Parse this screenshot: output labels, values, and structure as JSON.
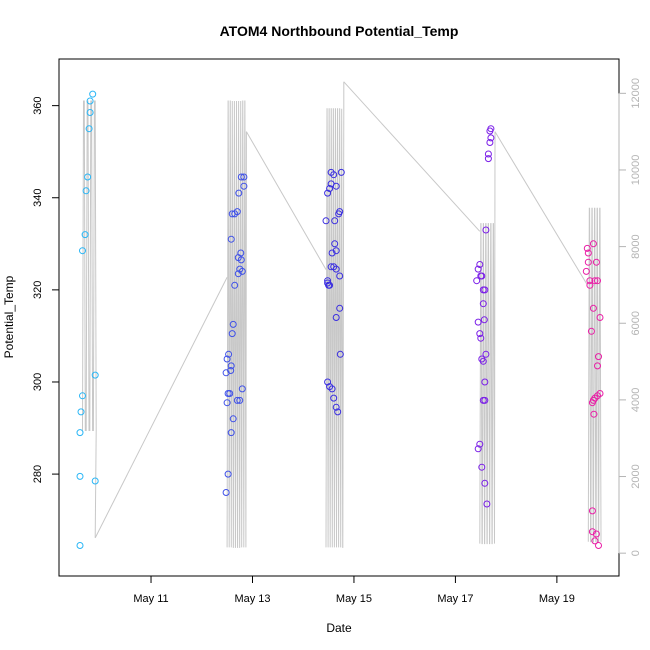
{
  "chart_data": {
    "type": "scatter",
    "title": "ATOM4 Northbound Potential_Temp",
    "xlabel": "Date",
    "ylabel": "Potential_Temp",
    "xlim": [
      9.6,
      19.85
    ],
    "ylim": [
      262,
      366
    ],
    "y2lim": [
      -100,
      12400
    ],
    "x_ticks": [
      {
        "value": 11,
        "label": "May 11"
      },
      {
        "value": 13,
        "label": "May 13"
      },
      {
        "value": 15,
        "label": "May 15"
      },
      {
        "value": 17,
        "label": "May 17"
      },
      {
        "value": 19,
        "label": "May 19"
      }
    ],
    "y_ticks": [
      280,
      300,
      320,
      340,
      360
    ],
    "y2_ticks": [
      0,
      2000,
      4000,
      6000,
      8000,
      10000,
      12000
    ],
    "grid": false,
    "points": [
      {
        "x": 9.6,
        "y": 264.5,
        "c": "#29b6f6"
      },
      {
        "x": 9.6,
        "y": 279.5,
        "c": "#29b6f6"
      },
      {
        "x": 9.6,
        "y": 289.0,
        "c": "#29b6f6"
      },
      {
        "x": 9.62,
        "y": 293.5,
        "c": "#29b6f6"
      },
      {
        "x": 9.65,
        "y": 297.0,
        "c": "#29b6f6"
      },
      {
        "x": 9.65,
        "y": 328.5,
        "c": "#29b6f6"
      },
      {
        "x": 9.7,
        "y": 332.0,
        "c": "#29b6f6"
      },
      {
        "x": 9.72,
        "y": 341.5,
        "c": "#29b6f6"
      },
      {
        "x": 9.75,
        "y": 344.5,
        "c": "#29b6f6"
      },
      {
        "x": 9.78,
        "y": 355.0,
        "c": "#29b6f6"
      },
      {
        "x": 9.8,
        "y": 358.5,
        "c": "#29b6f6"
      },
      {
        "x": 9.8,
        "y": 361.0,
        "c": "#29b6f6"
      },
      {
        "x": 9.85,
        "y": 362.5,
        "c": "#29b6f6"
      },
      {
        "x": 9.9,
        "y": 278.5,
        "c": "#29b6f6"
      },
      {
        "x": 9.9,
        "y": 301.5,
        "c": "#29b6f6"
      },
      {
        "x": 12.48,
        "y": 276.0,
        "c": "#3f51e8"
      },
      {
        "x": 12.52,
        "y": 280.0,
        "c": "#3f51e8"
      },
      {
        "x": 12.5,
        "y": 295.5,
        "c": "#3f51e8"
      },
      {
        "x": 12.52,
        "y": 297.5,
        "c": "#3f51e8"
      },
      {
        "x": 12.55,
        "y": 297.5,
        "c": "#3f51e8"
      },
      {
        "x": 12.48,
        "y": 302.0,
        "c": "#3f51e8"
      },
      {
        "x": 12.57,
        "y": 302.5,
        "c": "#3f51e8"
      },
      {
        "x": 12.58,
        "y": 303.5,
        "c": "#3f51e8"
      },
      {
        "x": 12.5,
        "y": 305.0,
        "c": "#3f51e8"
      },
      {
        "x": 12.53,
        "y": 306.0,
        "c": "#3f51e8"
      },
      {
        "x": 12.58,
        "y": 289.0,
        "c": "#3f51e8"
      },
      {
        "x": 12.62,
        "y": 292.0,
        "c": "#3f51e8"
      },
      {
        "x": 12.6,
        "y": 310.5,
        "c": "#3f51e8"
      },
      {
        "x": 12.62,
        "y": 312.5,
        "c": "#3f51e8"
      },
      {
        "x": 12.65,
        "y": 321.0,
        "c": "#3f51e8"
      },
      {
        "x": 12.58,
        "y": 331.0,
        "c": "#3f51e8"
      },
      {
        "x": 12.6,
        "y": 336.5,
        "c": "#3f51e8"
      },
      {
        "x": 12.65,
        "y": 336.5,
        "c": "#3f51e8"
      },
      {
        "x": 12.7,
        "y": 337.0,
        "c": "#3f51e8"
      },
      {
        "x": 12.7,
        "y": 296.0,
        "c": "#3f51e8"
      },
      {
        "x": 12.75,
        "y": 296.0,
        "c": "#3f51e8"
      },
      {
        "x": 12.72,
        "y": 323.5,
        "c": "#3f51e8"
      },
      {
        "x": 12.75,
        "y": 324.5,
        "c": "#3f51e8"
      },
      {
        "x": 12.78,
        "y": 326.5,
        "c": "#3f51e8"
      },
      {
        "x": 12.72,
        "y": 327.0,
        "c": "#3f51e8"
      },
      {
        "x": 12.77,
        "y": 328.0,
        "c": "#3f51e8"
      },
      {
        "x": 12.8,
        "y": 324.0,
        "c": "#3f51e8"
      },
      {
        "x": 12.73,
        "y": 341.0,
        "c": "#3f51e8"
      },
      {
        "x": 12.78,
        "y": 344.5,
        "c": "#3f51e8"
      },
      {
        "x": 12.83,
        "y": 344.5,
        "c": "#3f51e8"
      },
      {
        "x": 12.83,
        "y": 342.5,
        "c": "#3f51e8"
      },
      {
        "x": 12.8,
        "y": 298.5,
        "c": "#3f51e8"
      },
      {
        "x": 14.45,
        "y": 335.0,
        "c": "#3a2ee0"
      },
      {
        "x": 14.48,
        "y": 341.0,
        "c": "#3a2ee0"
      },
      {
        "x": 14.52,
        "y": 342.0,
        "c": "#3a2ee0"
      },
      {
        "x": 14.55,
        "y": 343.0,
        "c": "#3a2ee0"
      },
      {
        "x": 14.55,
        "y": 345.5,
        "c": "#3a2ee0"
      },
      {
        "x": 14.6,
        "y": 345.0,
        "c": "#3a2ee0"
      },
      {
        "x": 14.48,
        "y": 321.5,
        "c": "#3a2ee0"
      },
      {
        "x": 14.5,
        "y": 321.0,
        "c": "#3a2ee0"
      },
      {
        "x": 14.52,
        "y": 321.0,
        "c": "#3a2ee0"
      },
      {
        "x": 14.48,
        "y": 322.0,
        "c": "#3a2ee0"
      },
      {
        "x": 14.55,
        "y": 325.0,
        "c": "#3a2ee0"
      },
      {
        "x": 14.57,
        "y": 328.0,
        "c": "#3a2ee0"
      },
      {
        "x": 14.6,
        "y": 325.0,
        "c": "#3a2ee0"
      },
      {
        "x": 14.62,
        "y": 330.0,
        "c": "#3a2ee0"
      },
      {
        "x": 14.65,
        "y": 328.5,
        "c": "#3a2ee0"
      },
      {
        "x": 14.65,
        "y": 324.5,
        "c": "#3a2ee0"
      },
      {
        "x": 14.62,
        "y": 335.0,
        "c": "#3a2ee0"
      },
      {
        "x": 14.65,
        "y": 342.5,
        "c": "#3a2ee0"
      },
      {
        "x": 14.7,
        "y": 336.5,
        "c": "#3a2ee0"
      },
      {
        "x": 14.72,
        "y": 337.0,
        "c": "#3a2ee0"
      },
      {
        "x": 14.75,
        "y": 345.5,
        "c": "#3a2ee0"
      },
      {
        "x": 14.72,
        "y": 323.0,
        "c": "#3a2ee0"
      },
      {
        "x": 14.65,
        "y": 314.0,
        "c": "#3a2ee0"
      },
      {
        "x": 14.72,
        "y": 316.0,
        "c": "#3a2ee0"
      },
      {
        "x": 14.48,
        "y": 300.0,
        "c": "#3a2ee0"
      },
      {
        "x": 14.52,
        "y": 299.0,
        "c": "#3a2ee0"
      },
      {
        "x": 14.57,
        "y": 298.5,
        "c": "#3a2ee0"
      },
      {
        "x": 14.6,
        "y": 296.5,
        "c": "#3a2ee0"
      },
      {
        "x": 14.65,
        "y": 294.5,
        "c": "#3a2ee0"
      },
      {
        "x": 14.68,
        "y": 293.5,
        "c": "#3a2ee0"
      },
      {
        "x": 14.73,
        "y": 306.0,
        "c": "#3a2ee0"
      },
      {
        "x": 17.42,
        "y": 322.0,
        "c": "#7b1fe8"
      },
      {
        "x": 17.45,
        "y": 324.5,
        "c": "#7b1fe8"
      },
      {
        "x": 17.48,
        "y": 325.5,
        "c": "#7b1fe8"
      },
      {
        "x": 17.5,
        "y": 323.0,
        "c": "#7b1fe8"
      },
      {
        "x": 17.52,
        "y": 323.0,
        "c": "#7b1fe8"
      },
      {
        "x": 17.55,
        "y": 320.0,
        "c": "#7b1fe8"
      },
      {
        "x": 17.58,
        "y": 320.0,
        "c": "#7b1fe8"
      },
      {
        "x": 17.55,
        "y": 317.0,
        "c": "#7b1fe8"
      },
      {
        "x": 17.45,
        "y": 313.0,
        "c": "#7b1fe8"
      },
      {
        "x": 17.48,
        "y": 310.5,
        "c": "#7b1fe8"
      },
      {
        "x": 17.5,
        "y": 309.5,
        "c": "#7b1fe8"
      },
      {
        "x": 17.57,
        "y": 313.5,
        "c": "#7b1fe8"
      },
      {
        "x": 17.52,
        "y": 305.0,
        "c": "#7b1fe8"
      },
      {
        "x": 17.55,
        "y": 304.5,
        "c": "#7b1fe8"
      },
      {
        "x": 17.6,
        "y": 306.0,
        "c": "#7b1fe8"
      },
      {
        "x": 17.58,
        "y": 300.0,
        "c": "#7b1fe8"
      },
      {
        "x": 17.55,
        "y": 296.0,
        "c": "#7b1fe8"
      },
      {
        "x": 17.58,
        "y": 296.0,
        "c": "#7b1fe8"
      },
      {
        "x": 17.45,
        "y": 285.5,
        "c": "#7b1fe8"
      },
      {
        "x": 17.48,
        "y": 286.5,
        "c": "#7b1fe8"
      },
      {
        "x": 17.52,
        "y": 281.5,
        "c": "#7b1fe8"
      },
      {
        "x": 17.58,
        "y": 278.0,
        "c": "#7b1fe8"
      },
      {
        "x": 17.62,
        "y": 273.5,
        "c": "#7b1fe8"
      },
      {
        "x": 17.6,
        "y": 333.0,
        "c": "#7b1fe8"
      },
      {
        "x": 17.65,
        "y": 349.5,
        "c": "#7b1fe8"
      },
      {
        "x": 17.65,
        "y": 348.5,
        "c": "#7b1fe8"
      },
      {
        "x": 17.68,
        "y": 352.0,
        "c": "#7b1fe8"
      },
      {
        "x": 17.7,
        "y": 353.0,
        "c": "#7b1fe8"
      },
      {
        "x": 17.68,
        "y": 354.5,
        "c": "#7b1fe8"
      },
      {
        "x": 17.7,
        "y": 355.0,
        "c": "#7b1fe8"
      },
      {
        "x": 19.6,
        "y": 329.0,
        "c": "#e91ea6"
      },
      {
        "x": 19.62,
        "y": 328.0,
        "c": "#e91ea6"
      },
      {
        "x": 19.58,
        "y": 324.0,
        "c": "#e91ea6"
      },
      {
        "x": 19.65,
        "y": 322.0,
        "c": "#e91ea6"
      },
      {
        "x": 19.62,
        "y": 326.0,
        "c": "#e91ea6"
      },
      {
        "x": 19.65,
        "y": 321.0,
        "c": "#e91ea6"
      },
      {
        "x": 19.72,
        "y": 330.0,
        "c": "#e91ea6"
      },
      {
        "x": 19.78,
        "y": 326.0,
        "c": "#e91ea6"
      },
      {
        "x": 19.8,
        "y": 322.0,
        "c": "#e91ea6"
      },
      {
        "x": 19.75,
        "y": 322.0,
        "c": "#e91ea6"
      },
      {
        "x": 19.72,
        "y": 316.0,
        "c": "#e91ea6"
      },
      {
        "x": 19.68,
        "y": 311.0,
        "c": "#e91ea6"
      },
      {
        "x": 19.85,
        "y": 314.0,
        "c": "#e91ea6"
      },
      {
        "x": 19.82,
        "y": 305.5,
        "c": "#e91ea6"
      },
      {
        "x": 19.8,
        "y": 303.5,
        "c": "#e91ea6"
      },
      {
        "x": 19.85,
        "y": 297.5,
        "c": "#e91ea6"
      },
      {
        "x": 19.8,
        "y": 297.0,
        "c": "#e91ea6"
      },
      {
        "x": 19.75,
        "y": 296.5,
        "c": "#e91ea6"
      },
      {
        "x": 19.72,
        "y": 296.0,
        "c": "#e91ea6"
      },
      {
        "x": 19.7,
        "y": 295.5,
        "c": "#e91ea6"
      },
      {
        "x": 19.73,
        "y": 293.0,
        "c": "#e91ea6"
      },
      {
        "x": 19.7,
        "y": 272.0,
        "c": "#e91ea6"
      },
      {
        "x": 19.7,
        "y": 267.5,
        "c": "#e91ea6"
      },
      {
        "x": 19.78,
        "y": 267.0,
        "c": "#e91ea6"
      },
      {
        "x": 19.75,
        "y": 265.5,
        "c": "#e91ea6"
      },
      {
        "x": 19.82,
        "y": 264.5,
        "c": "#e91ea6"
      }
    ],
    "depth_bursts": [
      {
        "xmin": 9.65,
        "xmax": 9.9,
        "n": 8,
        "low": 3200,
        "high": 11800,
        "tail": [
          9.9,
          400
        ]
      },
      {
        "xmin": 12.5,
        "xmax": 12.85,
        "n": 18,
        "low": 150,
        "high": 11800,
        "tail": [
          12.88,
          11000
        ]
      },
      {
        "xmin": 14.45,
        "xmax": 14.78,
        "n": 17,
        "low": 150,
        "high": 11600,
        "tail": [
          14.8,
          12300
        ]
      },
      {
        "xmin": 17.48,
        "xmax": 17.75,
        "n": 12,
        "low": 250,
        "high": 8600,
        "tail": [
          17.78,
          11000
        ]
      },
      {
        "xmin": 19.62,
        "xmax": 19.85,
        "n": 10,
        "low": 300,
        "high": 9000,
        "tail": [
          19.85,
          8900
        ]
      }
    ],
    "depth_connectors": [
      {
        "from": [
          9.9,
          400
        ],
        "to": [
          12.5,
          7200
        ]
      },
      {
        "from": [
          12.88,
          11000
        ],
        "to": [
          14.45,
          7400
        ]
      },
      {
        "from": [
          14.8,
          12300
        ],
        "to": [
          17.48,
          8400
        ]
      },
      {
        "from": [
          17.78,
          11000
        ],
        "to": [
          19.6,
          7000
        ]
      }
    ],
    "colors": {
      "depth_line": "#c8c8c8",
      "axis": "#000000",
      "right_axis": "#b4b4b4"
    }
  }
}
